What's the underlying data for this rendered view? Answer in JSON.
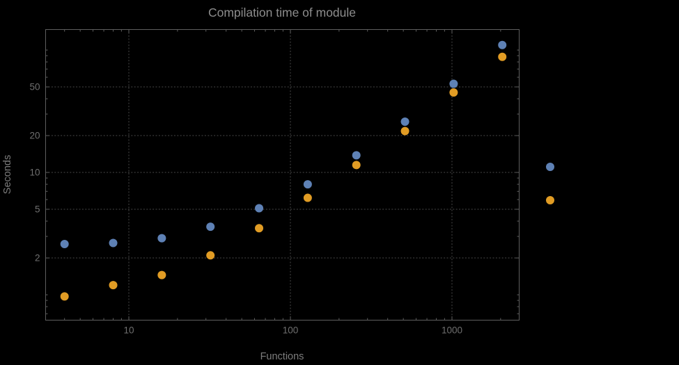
{
  "page": {
    "background": "#000000"
  },
  "chart_data": {
    "type": "scatter",
    "title": "Compilation time of module",
    "xlabel": "Functions",
    "ylabel": "Seconds",
    "x_scale": "log",
    "y_scale": "log",
    "grid": true,
    "grid_style": "dotted",
    "legend_position": "right-outside",
    "x_ticks": [
      10,
      100,
      1000
    ],
    "y_ticks": [
      2,
      5,
      10,
      20,
      50
    ],
    "x_range": [
      3.05,
      2590
    ],
    "y_range": [
      0.63,
      148
    ],
    "series": [
      {
        "name": "series-1-blue",
        "color": "#5E81B5",
        "x": [
          4,
          8,
          16,
          32,
          64,
          128,
          256,
          512,
          1024,
          2048
        ],
        "y": [
          2.6,
          2.65,
          2.9,
          3.6,
          5.1,
          8.0,
          13.8,
          26,
          53,
          110
        ]
      },
      {
        "name": "series-2-orange",
        "color": "#E19C24",
        "x": [
          4,
          8,
          16,
          32,
          64,
          128,
          256,
          512,
          1024,
          2048
        ],
        "y": [
          0.97,
          1.2,
          1.45,
          2.1,
          3.5,
          6.2,
          11.5,
          21.8,
          45,
          88
        ]
      }
    ]
  }
}
